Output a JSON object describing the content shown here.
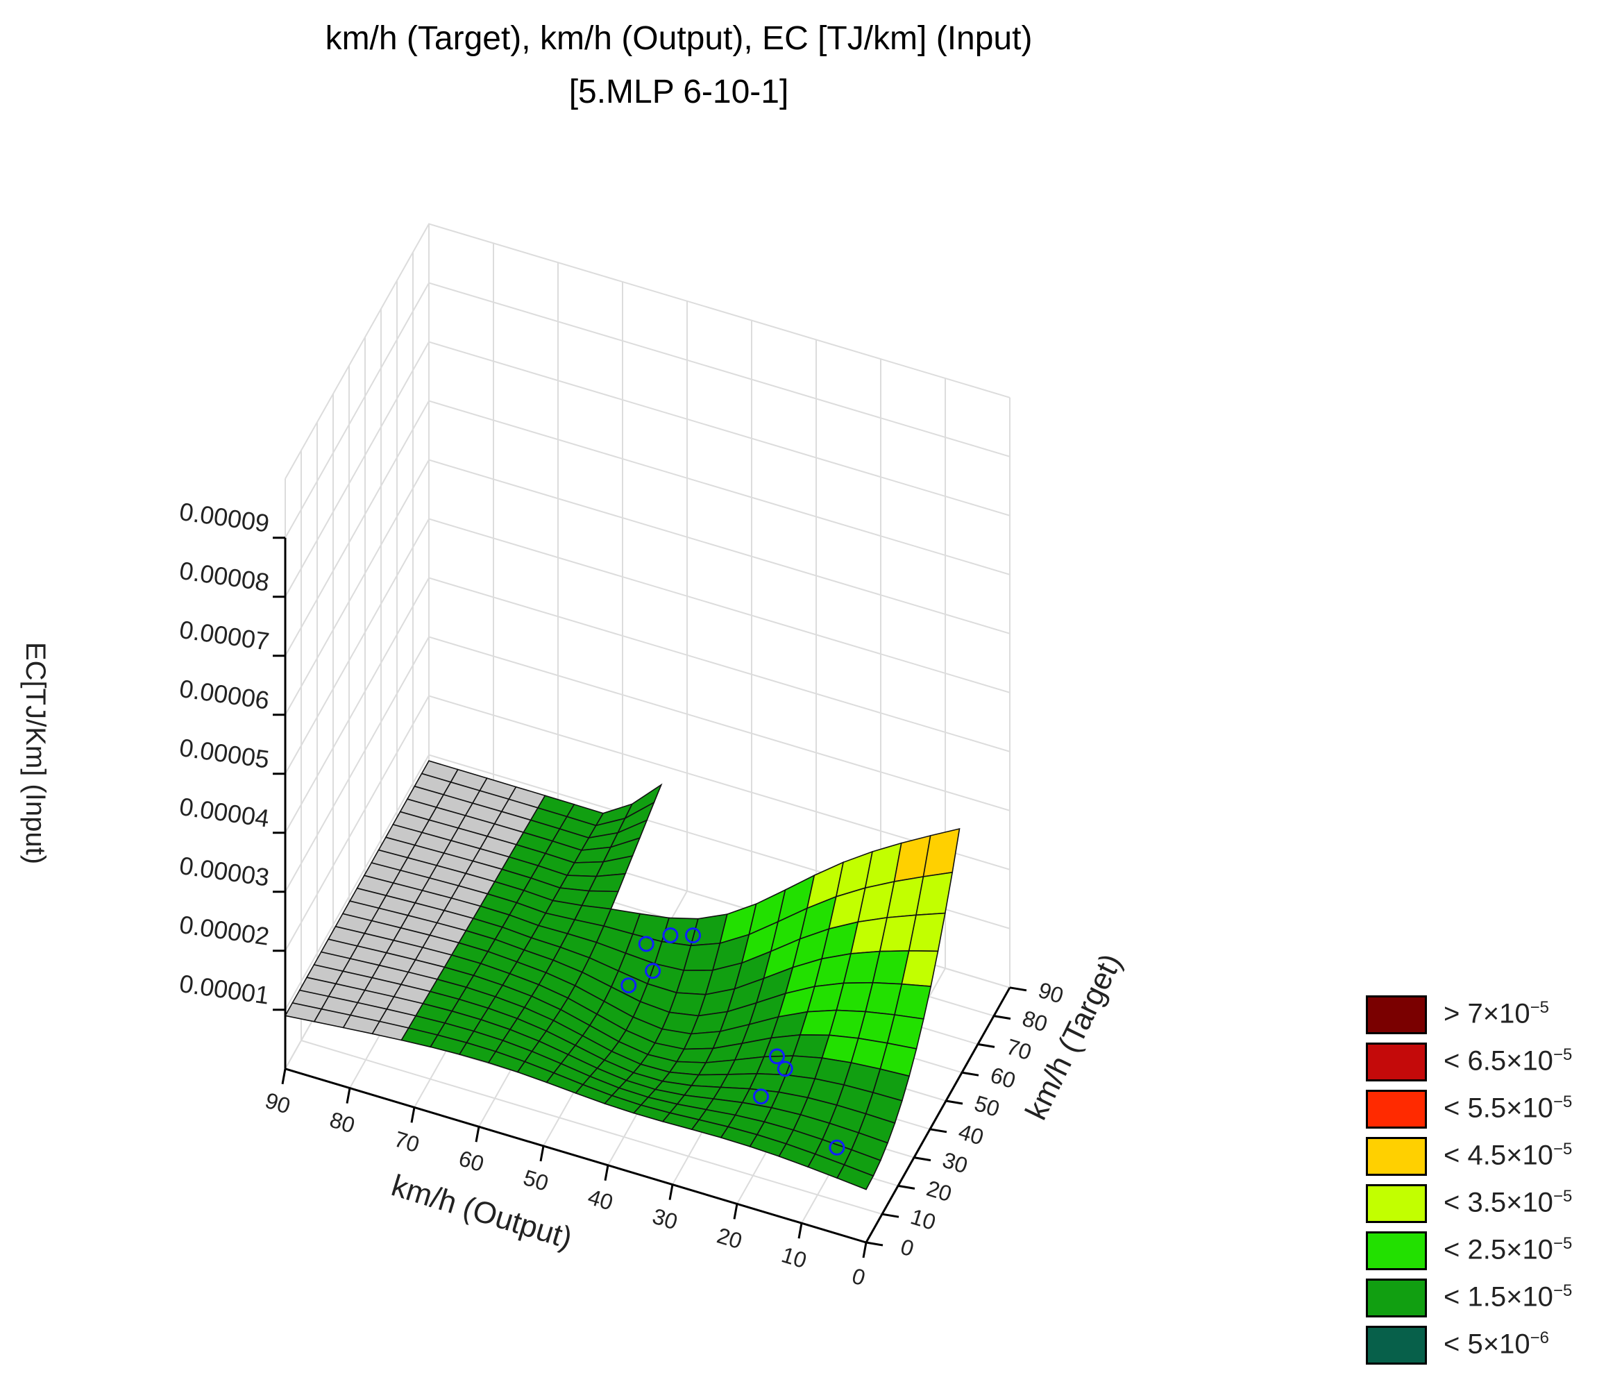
{
  "chart_data": {
    "type": "surface3d",
    "title_line1": "km/h (Target), km/h (Output), EC [TJ/km] (Input)",
    "title_line2": "[5.MLP 6-10-1]",
    "x_label": "km/h (Output)",
    "y_label": "km/h (Target)",
    "z_label": "EC[TJ/Km] (Input)",
    "x_ticks": [
      "90",
      "80",
      "70",
      "60",
      "50",
      "40",
      "30",
      "20",
      "10",
      "0"
    ],
    "y_ticks": [
      "0",
      "10",
      "20",
      "30",
      "40",
      "50",
      "60",
      "70",
      "80",
      "90"
    ],
    "z_ticks": [
      "0.00001",
      "0.00002",
      "0.00003",
      "0.00004",
      "0.00005",
      "0.00006",
      "0.00007",
      "0.00008",
      "0.00009"
    ],
    "x_range": [
      0,
      90
    ],
    "y_range": [
      0,
      90
    ],
    "grid": true,
    "legend_position": "bottom-right",
    "points": [
      {
        "output": 40,
        "target": 24,
        "ec": 2.6e-05
      },
      {
        "output": 37,
        "target": 27,
        "ec": 2.7e-05
      },
      {
        "output": 34,
        "target": 29,
        "ec": 2.7e-05
      },
      {
        "output": 38,
        "target": 20,
        "ec": 2.4e-05
      },
      {
        "output": 41,
        "target": 17,
        "ec": 2.2e-05
      },
      {
        "output": 20,
        "target": 25,
        "ec": 1.3e-05
      },
      {
        "output": 18,
        "target": 22,
        "ec": 1.3e-05
      },
      {
        "output": 20,
        "target": 15,
        "ec": 1.1e-05
      },
      {
        "output": 7,
        "target": 10,
        "ec": 9e-06
      }
    ],
    "legend": [
      {
        "op": ">",
        "mant": "7",
        "exp": "−5",
        "color": "#7a0000"
      },
      {
        "op": "<",
        "mant": "6.5",
        "exp": "−5",
        "color": "#c40a0a"
      },
      {
        "op": "<",
        "mant": "5.5",
        "exp": "−5",
        "color": "#ff2a00"
      },
      {
        "op": "<",
        "mant": "4.5",
        "exp": "−5",
        "color": "#ffd000"
      },
      {
        "op": "<",
        "mant": "3.5",
        "exp": "−5",
        "color": "#c2ff00"
      },
      {
        "op": "<",
        "mant": "2.5",
        "exp": "−5",
        "color": "#22e000"
      },
      {
        "op": "<",
        "mant": "1.5",
        "exp": "−5",
        "color": "#119f11"
      },
      {
        "op": "<",
        "mant": "5",
        "exp": "−6",
        "color": "#07604a"
      }
    ],
    "extrapolated_color": "#c8c8c8",
    "marker_color": "#1020ff"
  }
}
